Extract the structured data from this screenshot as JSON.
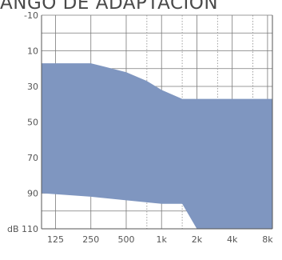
{
  "chart_title": "ANGO DE ADAPTACIÓN",
  "chart_data": {
    "type": "area",
    "title": "ANGO DE ADAPTACIÓN",
    "xlabel": "",
    "ylabel": "dB",
    "x_categories": [
      "125",
      "250",
      "500",
      "1k",
      "2k",
      "4k",
      "8k"
    ],
    "x_values_hz": [
      125,
      250,
      500,
      1000,
      2000,
      4000,
      8000
    ],
    "y_tick_labels": [
      "-10",
      "10",
      "30",
      "50",
      "70",
      "90",
      "110"
    ],
    "y_unit_label": "dB",
    "ylim": [
      -10,
      110
    ],
    "y_inverted": true,
    "grid": true,
    "series": [
      {
        "upper_boundary": [
          [
            95,
            17
          ],
          [
            250,
            17
          ],
          [
            500,
            22
          ],
          [
            750,
            27
          ],
          [
            1000,
            32
          ],
          [
            1500,
            37
          ],
          [
            8800,
            37
          ]
        ],
        "lower_boundary": [
          [
            95,
            90
          ],
          [
            250,
            92
          ],
          [
            500,
            94
          ],
          [
            1000,
            96
          ],
          [
            1500,
            96
          ],
          [
            2000,
            110
          ],
          [
            8800,
            110
          ]
        ],
        "color": "#7f96c0"
      }
    ]
  }
}
